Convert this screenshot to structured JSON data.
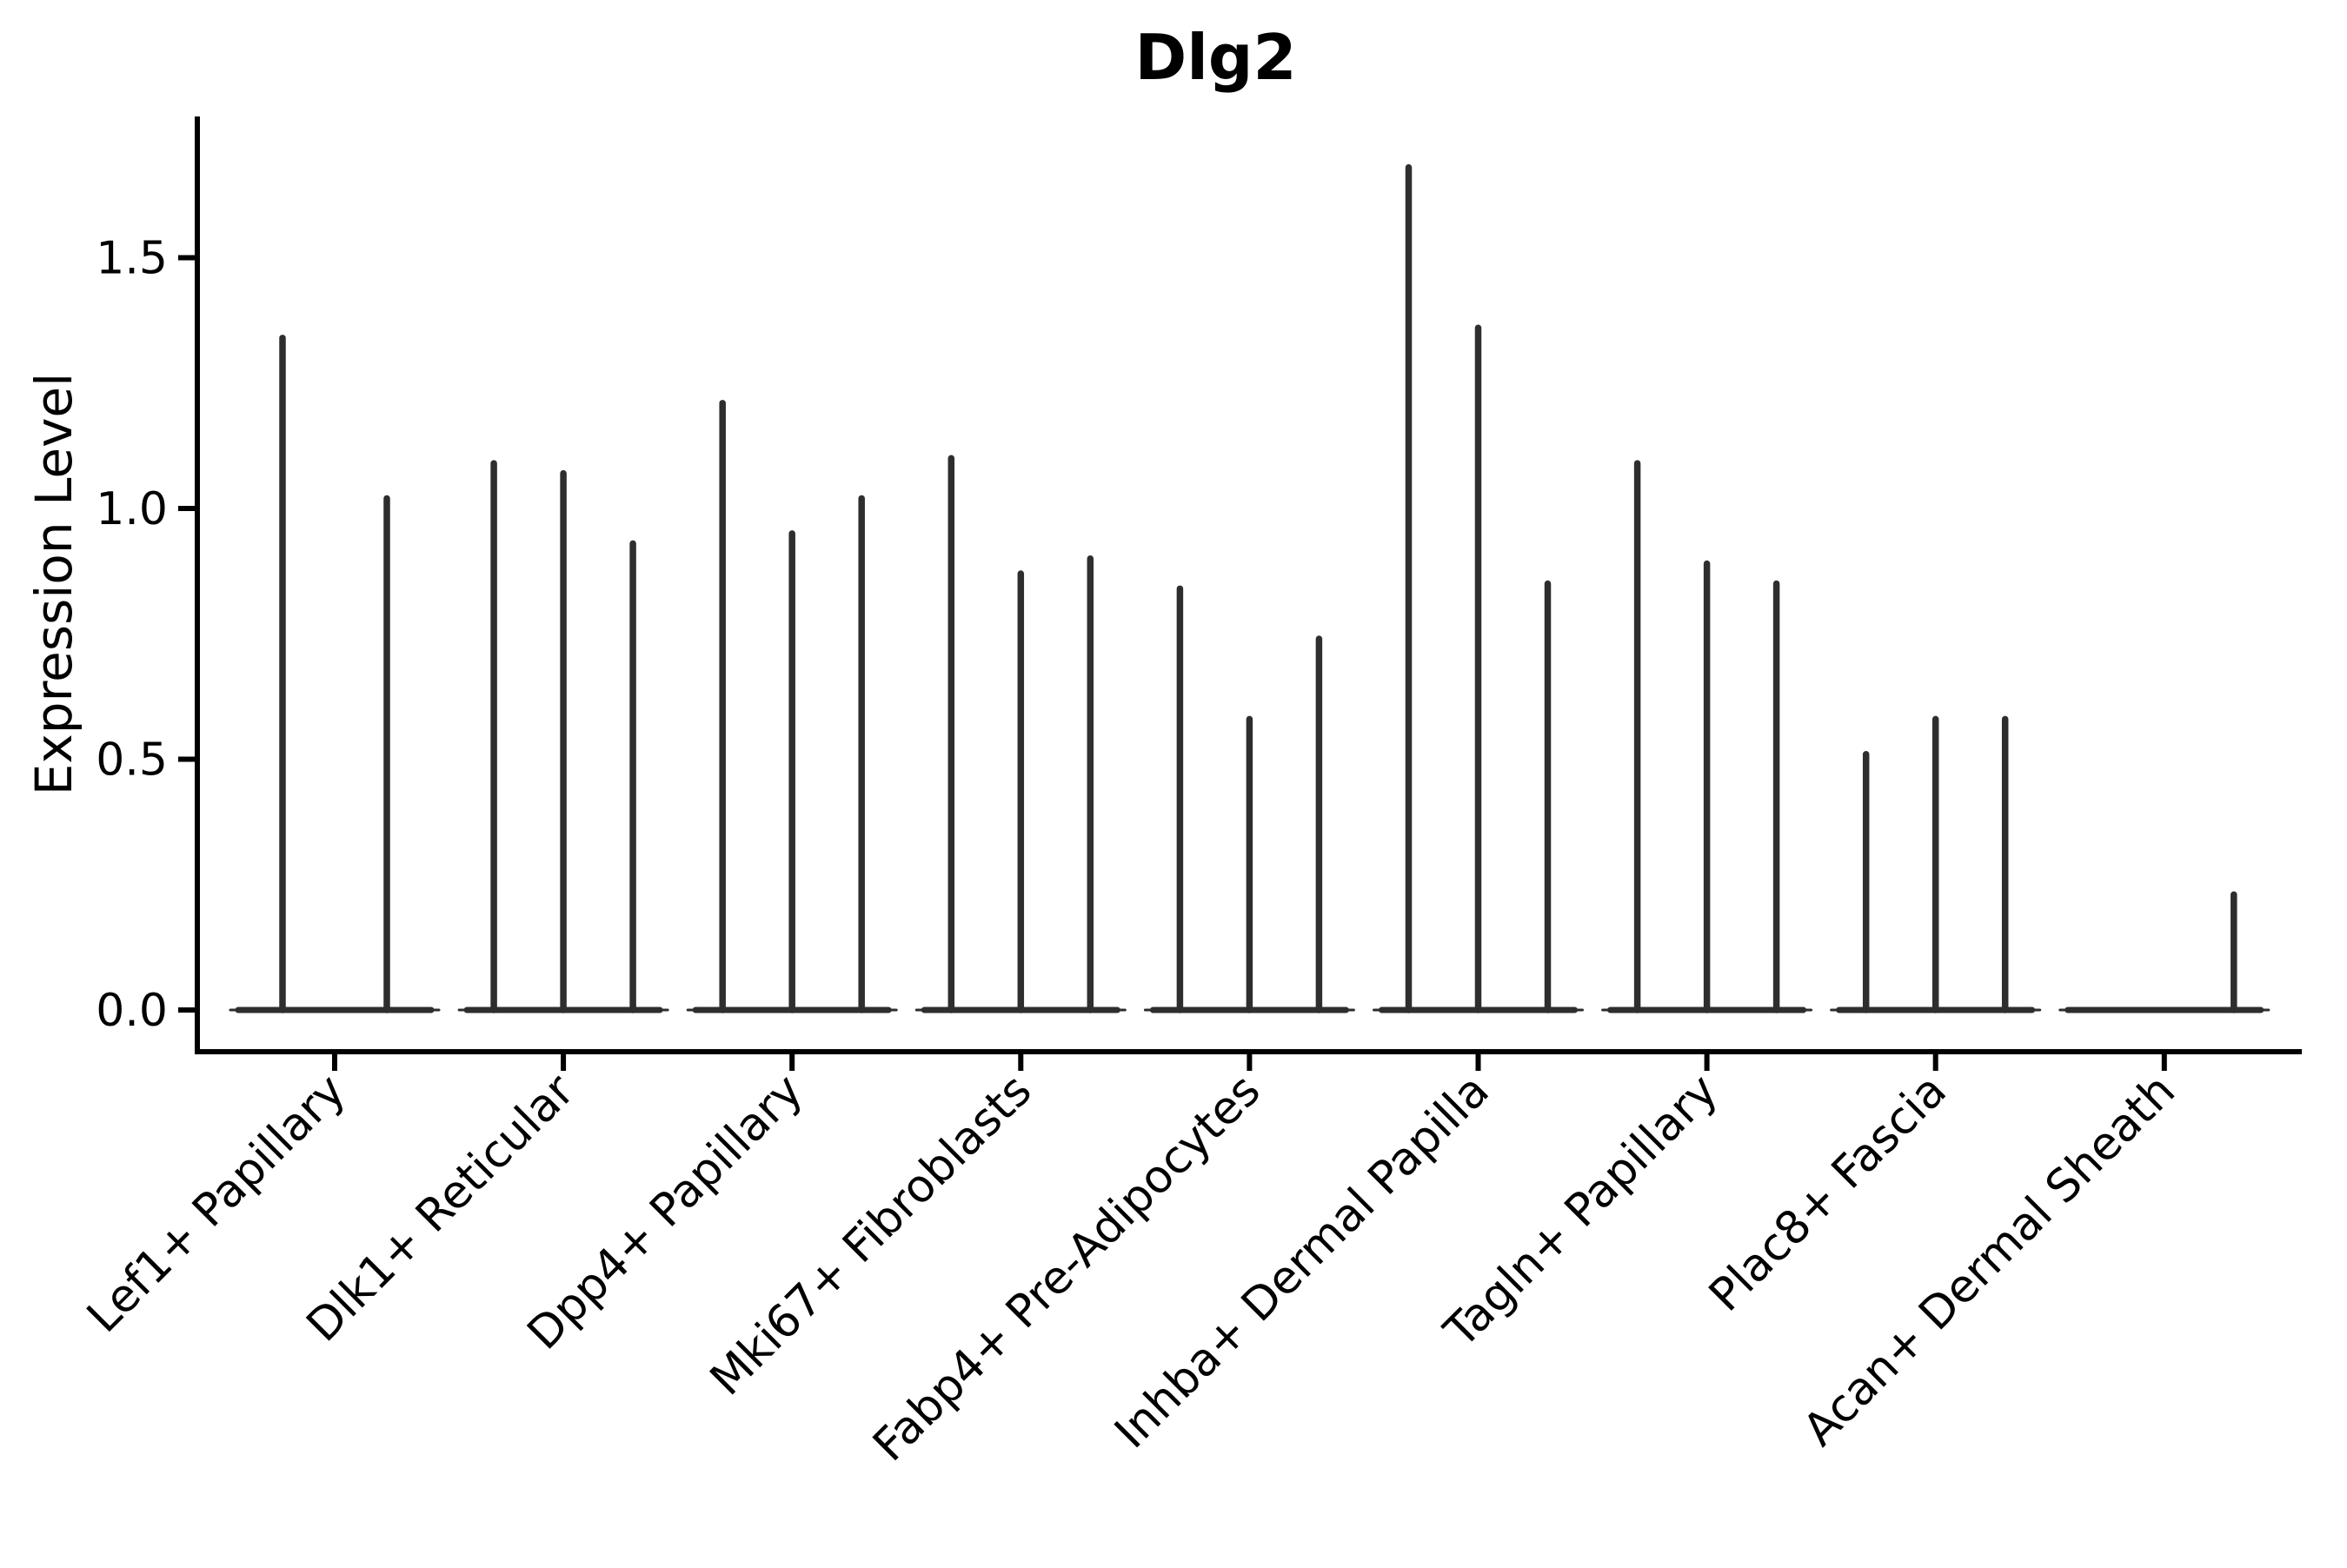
{
  "figure": {
    "title": "Dlg2",
    "y_axis": {
      "label": "Expression Level",
      "tick_labels": [
        "0.0",
        "0.5",
        "1.0",
        "1.5"
      ]
    },
    "x_axis": {
      "tick_labels": [
        "Lef1+ Papillary",
        "Dlk1+ Reticular",
        "Dpp4+ Papillary",
        "Mki67+ Fibroblasts",
        "Fabp4+ Pre-Adipocytes",
        "Inhba+ Dermal Papilla",
        "Tagln+ Papillary",
        "Plac8+ Fascia",
        "Acan+ Dermal Sheath"
      ]
    }
  },
  "chart_data": {
    "type": "violin",
    "title": "Dlg2",
    "xlabel": "",
    "ylabel": "Expression Level",
    "ylim": [
      -0.08,
      1.78
    ],
    "yticks": [
      0.0,
      0.5,
      1.0,
      1.5
    ],
    "grid": false,
    "legend": null,
    "style": "needle violins: bulk of observations at 0 forming a flat base, thin tail rising to each violin's maximum",
    "categories": [
      "Lef1+ Papillary",
      "Dlk1+ Reticular",
      "Dpp4+ Papillary",
      "Mki67+ Fibroblasts",
      "Fabp4+ Pre-Adipocytes",
      "Inhba+ Dermal Papilla",
      "Tagln+ Papillary",
      "Plac8+ Fascia",
      "Acan+ Dermal Sheath"
    ],
    "series": [
      {
        "category": "Lef1+ Papillary",
        "violin_max": [
          1.34,
          1.02
        ]
      },
      {
        "category": "Dlk1+ Reticular",
        "violin_max": [
          1.09,
          1.07,
          0.93
        ]
      },
      {
        "category": "Dpp4+ Papillary",
        "violin_max": [
          1.21,
          0.95,
          1.02
        ]
      },
      {
        "category": "Mki67+ Fibroblasts",
        "violin_max": [
          1.1,
          0.87,
          0.9
        ]
      },
      {
        "category": "Fabp4+ Pre-Adipocytes",
        "violin_max": [
          0.84,
          0.58,
          0.74
        ]
      },
      {
        "category": "Inhba+ Dermal Papilla",
        "violin_max": [
          1.68,
          1.36,
          0.85
        ]
      },
      {
        "category": "Tagln+ Papillary",
        "violin_max": [
          1.09,
          0.89,
          0.85
        ]
      },
      {
        "category": "Plac8+ Fascia",
        "violin_max": [
          0.51,
          0.58,
          0.58
        ]
      },
      {
        "category": "Acan+ Dermal Sheath",
        "violin_max": [
          0.0,
          0.0,
          0.23
        ]
      }
    ],
    "colors": {
      "violin_stroke": "#2e2e2e",
      "axis": "#000000",
      "background": "#ffffff"
    }
  }
}
